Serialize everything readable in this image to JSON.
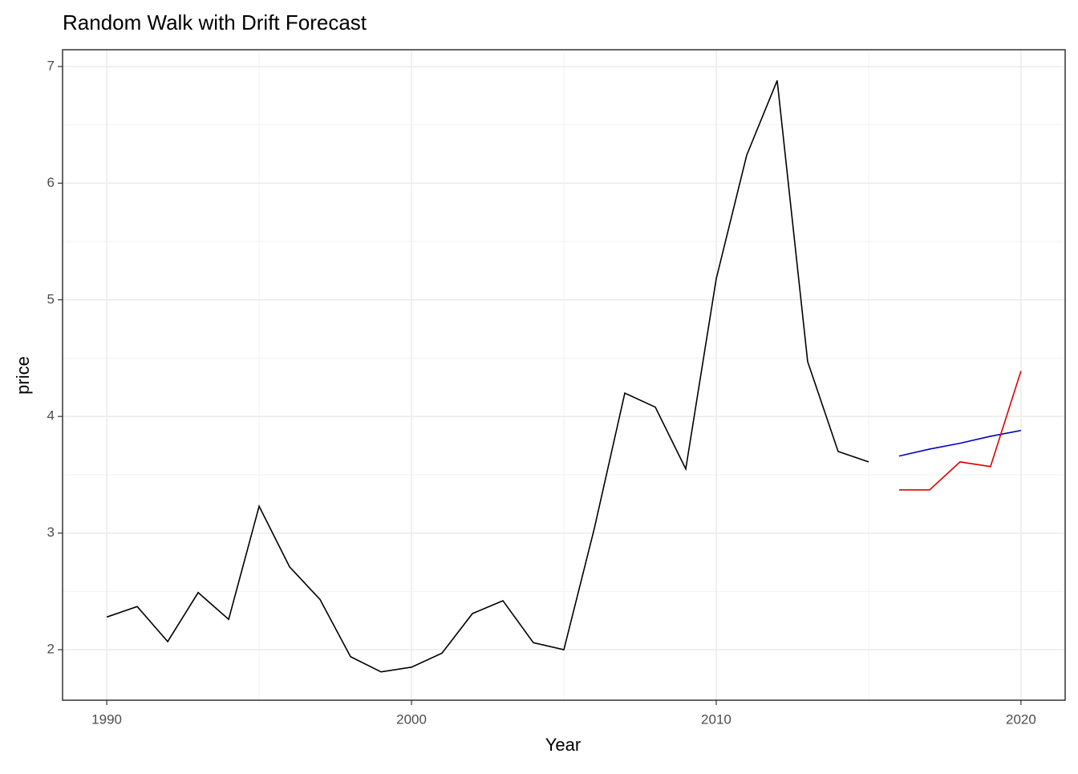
{
  "chart_data": {
    "type": "line",
    "title": "Random Walk with Drift Forecast",
    "x_label": "Year",
    "y_label": "price",
    "x": [
      1990,
      1991,
      1992,
      1993,
      1994,
      1995,
      1996,
      1997,
      1998,
      1999,
      2000,
      2001,
      2002,
      2003,
      2004,
      2005,
      2006,
      2007,
      2008,
      2009,
      2010,
      2011,
      2012,
      2013,
      2014,
      2015,
      2016,
      2017,
      2018,
      2019,
      2020
    ],
    "series": [
      {
        "color": "#000000",
        "values": [
          2.28,
          2.37,
          2.07,
          2.49,
          2.26,
          3.23,
          2.71,
          2.43,
          1.94,
          1.81,
          1.85,
          1.97,
          2.31,
          2.42,
          2.06,
          2.0,
          3.04,
          4.2,
          4.08,
          3.55,
          5.18,
          6.24,
          6.88,
          4.47,
          3.7,
          3.61,
          null,
          null,
          null,
          null,
          null
        ]
      },
      {
        "color": "#0000cc",
        "values": [
          null,
          null,
          null,
          null,
          null,
          null,
          null,
          null,
          null,
          null,
          null,
          null,
          null,
          null,
          null,
          null,
          null,
          null,
          null,
          null,
          null,
          null,
          null,
          null,
          null,
          null,
          3.66,
          3.72,
          3.77,
          3.83,
          3.88
        ]
      },
      {
        "color": "#e00000",
        "values": [
          null,
          null,
          null,
          null,
          null,
          null,
          null,
          null,
          null,
          null,
          null,
          null,
          null,
          null,
          null,
          null,
          null,
          null,
          null,
          null,
          null,
          null,
          null,
          null,
          null,
          null,
          3.37,
          3.37,
          3.61,
          3.57,
          4.39
        ]
      }
    ],
    "xlim": [
      1988.55,
      2021.45
    ],
    "xticks": [
      1990,
      2000,
      2010,
      2020
    ],
    "ylim": [
      1.567,
      7.144
    ],
    "yticks": [
      2,
      3,
      4,
      5,
      6,
      7
    ],
    "grid": true
  }
}
